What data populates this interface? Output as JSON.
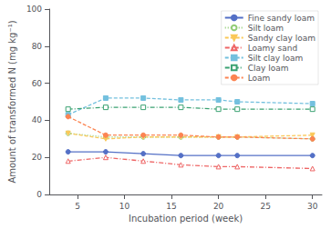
{
  "chart_data": {
    "type": "line",
    "xlabel": "Incubation period (week)",
    "ylabel": "Amount of transformed N (mg kg⁻¹)",
    "x": [
      4,
      8,
      12,
      16,
      20,
      22,
      30
    ],
    "series": [
      {
        "name": "Fine sandy loam",
        "values": [
          23,
          23,
          22,
          21,
          21,
          21,
          21
        ],
        "line_style": "solid",
        "marker": "circle"
      },
      {
        "name": "Silt loam",
        "values": [
          33,
          31,
          31,
          31,
          31,
          31,
          30
        ],
        "line_style": "dotted",
        "marker": "open-circle"
      },
      {
        "name": "Sandy clay loam",
        "values": [
          33,
          30,
          31,
          31,
          31,
          31,
          32
        ],
        "line_style": "dashed",
        "marker": "triangle-down"
      },
      {
        "name": "Loamy sand",
        "values": [
          18,
          20,
          18,
          16,
          15,
          15,
          14
        ],
        "line_style": "dashdot",
        "marker": "open-triangle"
      },
      {
        "name": "Silt clay loam",
        "values": [
          43,
          52,
          52,
          51,
          51,
          50,
          49
        ],
        "line_style": "dashed",
        "marker": "square"
      },
      {
        "name": "Clay loam",
        "values": [
          46,
          47,
          47,
          47,
          46,
          46,
          46
        ],
        "line_style": "dashdot",
        "marker": "open-square"
      },
      {
        "name": "Loam",
        "values": [
          42,
          32,
          32,
          32,
          31,
          31,
          30
        ],
        "line_style": "dashed",
        "marker": "circle"
      }
    ],
    "xlim": [
      2,
      31
    ],
    "ylim": [
      0,
      100
    ],
    "xticks": [
      5,
      10,
      15,
      20,
      25,
      30
    ],
    "yticks": [
      0,
      20,
      40,
      60,
      80,
      100
    ],
    "grid": false,
    "legend": "upper right"
  }
}
